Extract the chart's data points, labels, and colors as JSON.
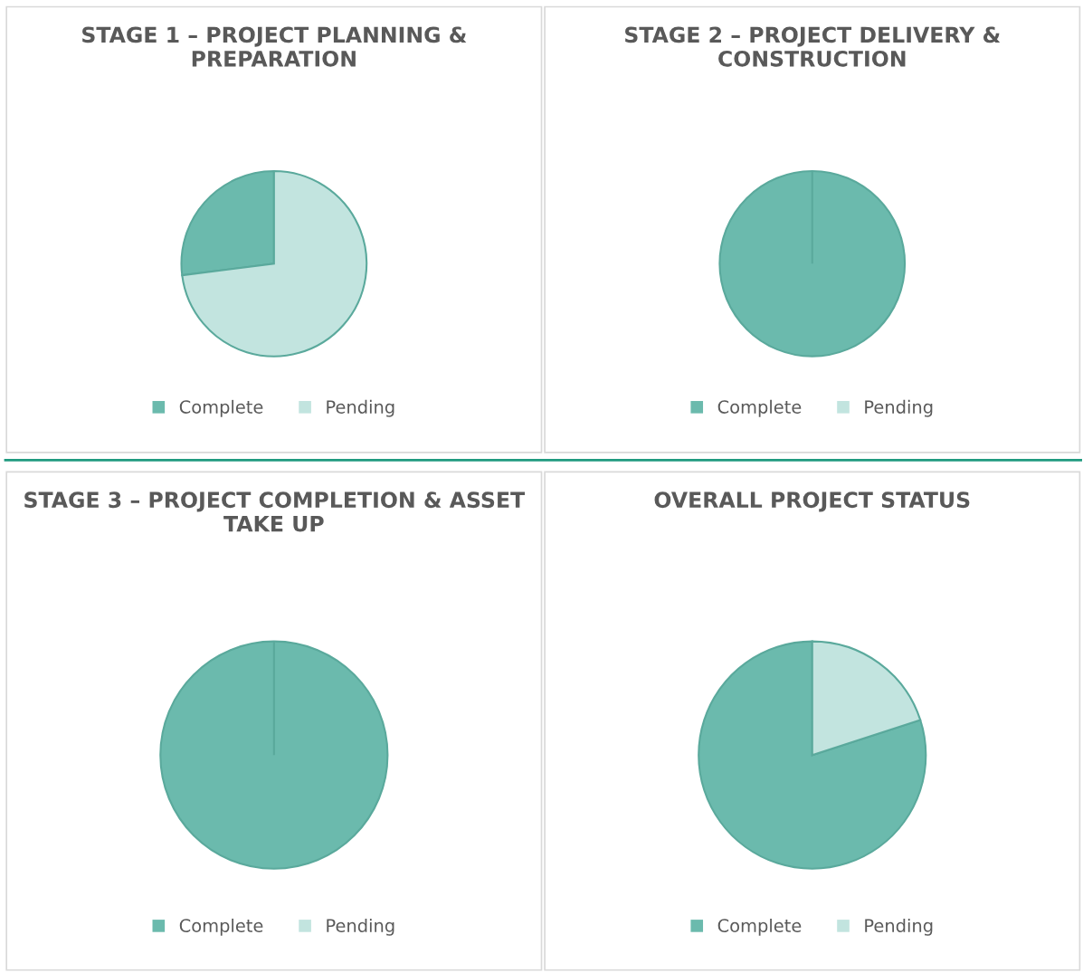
{
  "chart_data": [
    {
      "type": "pie",
      "title": "STAGE 1 – PROJECT PLANNING & PREPARATION",
      "categories": [
        "Complete",
        "Pending"
      ],
      "values": [
        27,
        73
      ],
      "colors": [
        "#6bbaad",
        "#c2e4df"
      ],
      "legend": "bottom"
    },
    {
      "type": "pie",
      "title": "STAGE 2 – PROJECT DELIVERY & CONSTRUCTION",
      "categories": [
        "Complete",
        "Pending"
      ],
      "values": [
        100,
        0
      ],
      "colors": [
        "#6bbaad",
        "#c2e4df"
      ],
      "legend": "bottom"
    },
    {
      "type": "pie",
      "title": "STAGE 3 – PROJECT COMPLETION & ASSET TAKE UP",
      "categories": [
        "Complete",
        "Pending"
      ],
      "values": [
        100,
        0
      ],
      "colors": [
        "#6bbaad",
        "#c2e4df"
      ],
      "legend": "bottom"
    },
    {
      "type": "pie",
      "title": "OVERALL PROJECT STATUS",
      "categories": [
        "Complete",
        "Pending"
      ],
      "values": [
        80,
        20
      ],
      "colors": [
        "#6bbaad",
        "#c2e4df"
      ],
      "legend": "bottom"
    }
  ]
}
